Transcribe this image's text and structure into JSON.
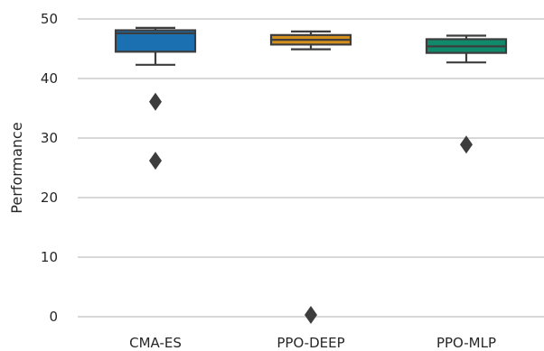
{
  "chart_data": {
    "type": "box",
    "ylabel": "Performance",
    "xlabel": "",
    "ylim": [
      0,
      52
    ],
    "yticks": [
      0,
      10,
      20,
      30,
      40,
      50
    ],
    "grid": "horizontal",
    "categories": [
      "CMA-ES",
      "PPO-DEEP",
      "PPO-MLP"
    ],
    "boxes": [
      {
        "category": "CMA-ES",
        "color": "#1a70b0",
        "whisker_low": 42.3,
        "q1": 44.5,
        "median": 47.6,
        "q3": 48.1,
        "whisker_high": 48.5,
        "outliers": [
          36.1,
          26.2
        ]
      },
      {
        "category": "PPO-DEEP",
        "color": "#d48f1c",
        "whisker_low": 44.9,
        "q1": 45.7,
        "median": 46.5,
        "q3": 47.3,
        "whisker_high": 47.9,
        "outliers": [
          0.3
        ]
      },
      {
        "category": "PPO-MLP",
        "color": "#11896b",
        "whisker_low": 42.7,
        "q1": 44.3,
        "median": 45.4,
        "q3": 46.6,
        "whisker_high": 47.2,
        "outliers": [
          28.9
        ]
      }
    ],
    "colors": {
      "grid": "#cccccc",
      "line": "#3d3d3d",
      "text": "#262626"
    }
  }
}
